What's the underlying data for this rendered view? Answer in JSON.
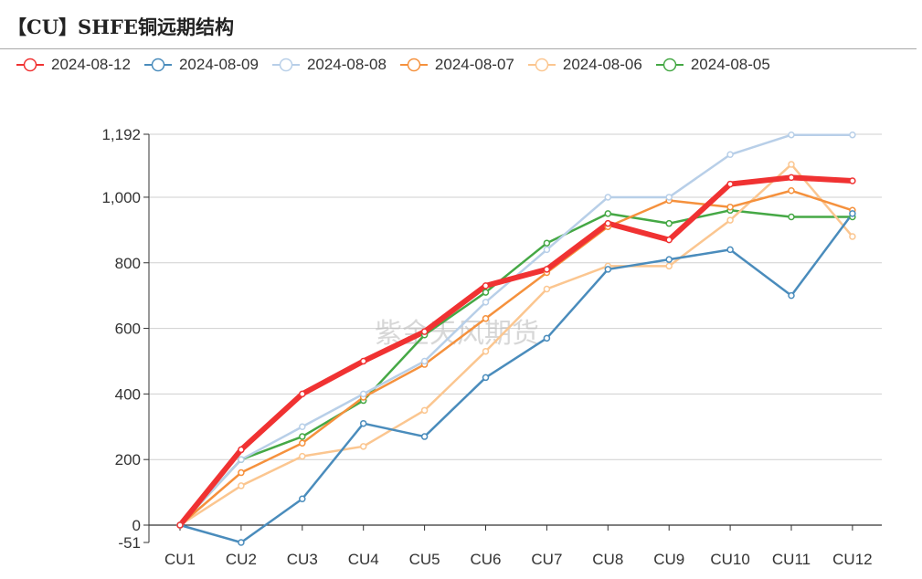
{
  "title": "【CU】SHFE铜远期结构",
  "watermark": "紫金天风期货",
  "chart_data": {
    "type": "line",
    "categories": [
      "CU1",
      "CU2",
      "CU3",
      "CU4",
      "CU5",
      "CU6",
      "CU7",
      "CU8",
      "CU9",
      "CU10",
      "CU11",
      "CU12"
    ],
    "series": [
      {
        "name": "2024-08-12",
        "color": "#f03232",
        "values": [
          0,
          230,
          400,
          500,
          590,
          730,
          780,
          920,
          870,
          1040,
          1060,
          1050
        ]
      },
      {
        "name": "2024-08-09",
        "color": "#4a8cbc",
        "values": [
          0,
          -51,
          80,
          310,
          270,
          450,
          570,
          780,
          810,
          840,
          700,
          950
        ]
      },
      {
        "name": "2024-08-08",
        "color": "#b8cfe8",
        "values": [
          0,
          200,
          300,
          400,
          500,
          680,
          840,
          1000,
          1000,
          1130,
          1190,
          1190
        ]
      },
      {
        "name": "2024-08-07",
        "color": "#f5913d",
        "values": [
          0,
          160,
          250,
          390,
          490,
          630,
          770,
          910,
          990,
          970,
          1020,
          960
        ]
      },
      {
        "name": "2024-08-06",
        "color": "#fbc690",
        "values": [
          0,
          120,
          210,
          240,
          350,
          530,
          720,
          790,
          790,
          930,
          1100,
          880
        ]
      },
      {
        "name": "2024-08-05",
        "color": "#45a845",
        "values": [
          0,
          200,
          270,
          380,
          580,
          710,
          860,
          950,
          920,
          960,
          940,
          940
        ]
      }
    ],
    "y_ticks": [
      "1,192",
      "1,000",
      "800",
      "600",
      "400",
      "200",
      "0",
      "-51"
    ],
    "y_tick_values": [
      1192,
      1000,
      800,
      600,
      400,
      200,
      0,
      -51
    ],
    "ylim": [
      -51,
      1192
    ],
    "grid": true,
    "legend_position": "top-left"
  }
}
